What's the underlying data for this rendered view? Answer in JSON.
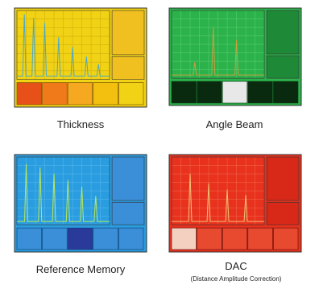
{
  "panels": [
    {
      "caption": "Thickness"
    },
    {
      "caption": "Angle Beam"
    },
    {
      "caption": "Reference Memory"
    },
    {
      "caption": "DAC",
      "subcaption": "(Distance Amplitude Correction)"
    }
  ]
}
